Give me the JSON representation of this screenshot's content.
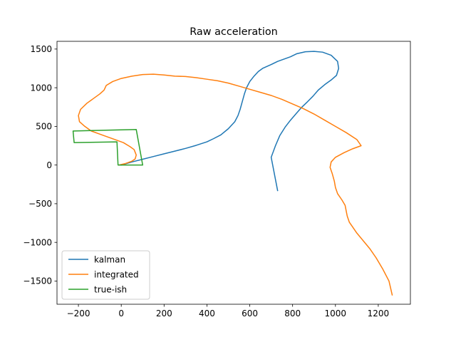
{
  "chart_data": {
    "type": "line",
    "title": "Raw acceleration",
    "xlabel": "",
    "ylabel": "",
    "xlim": [
      -300,
      1350
    ],
    "ylim": [
      -1800,
      1600
    ],
    "xticks": [
      -200,
      0,
      200,
      400,
      600,
      800,
      1000,
      1200
    ],
    "yticks": [
      -1500,
      -1000,
      -500,
      0,
      500,
      1000,
      1500
    ],
    "grid": false,
    "legend_position": "lower-left",
    "series": [
      {
        "name": "kalman",
        "color": "#1f77b4",
        "points": [
          [
            0,
            0
          ],
          [
            50,
            40
          ],
          [
            100,
            75
          ],
          [
            150,
            110
          ],
          [
            200,
            145
          ],
          [
            250,
            180
          ],
          [
            300,
            215
          ],
          [
            350,
            255
          ],
          [
            400,
            300
          ],
          [
            430,
            340
          ],
          [
            465,
            390
          ],
          [
            500,
            470
          ],
          [
            530,
            560
          ],
          [
            545,
            640
          ],
          [
            555,
            720
          ],
          [
            565,
            820
          ],
          [
            575,
            920
          ],
          [
            585,
            1000
          ],
          [
            600,
            1080
          ],
          [
            620,
            1150
          ],
          [
            640,
            1210
          ],
          [
            660,
            1250
          ],
          [
            700,
            1300
          ],
          [
            730,
            1340
          ],
          [
            760,
            1370
          ],
          [
            790,
            1400
          ],
          [
            820,
            1440
          ],
          [
            860,
            1465
          ],
          [
            900,
            1470
          ],
          [
            940,
            1460
          ],
          [
            980,
            1420
          ],
          [
            1010,
            1340
          ],
          [
            1015,
            1250
          ],
          [
            1005,
            1160
          ],
          [
            980,
            1100
          ],
          [
            950,
            1040
          ],
          [
            920,
            970
          ],
          [
            895,
            890
          ],
          [
            870,
            820
          ],
          [
            840,
            740
          ],
          [
            815,
            660
          ],
          [
            790,
            580
          ],
          [
            765,
            490
          ],
          [
            740,
            380
          ],
          [
            720,
            250
          ],
          [
            700,
            100
          ],
          [
            730,
            -330
          ]
        ]
      },
      {
        "name": "integrated",
        "color": "#ff7f0e",
        "points": [
          [
            -10,
            0
          ],
          [
            20,
            20
          ],
          [
            50,
            50
          ],
          [
            65,
            80
          ],
          [
            70,
            130
          ],
          [
            60,
            200
          ],
          [
            40,
            240
          ],
          [
            10,
            290
          ],
          [
            -30,
            330
          ],
          [
            -80,
            380
          ],
          [
            -140,
            440
          ],
          [
            -170,
            500
          ],
          [
            -195,
            560
          ],
          [
            -200,
            640
          ],
          [
            -190,
            720
          ],
          [
            -160,
            800
          ],
          [
            -130,
            860
          ],
          [
            -100,
            920
          ],
          [
            -80,
            970
          ],
          [
            -70,
            1030
          ],
          [
            -40,
            1080
          ],
          [
            0,
            1120
          ],
          [
            50,
            1150
          ],
          [
            100,
            1170
          ],
          [
            150,
            1175
          ],
          [
            200,
            1165
          ],
          [
            250,
            1150
          ],
          [
            300,
            1145
          ],
          [
            350,
            1130
          ],
          [
            400,
            1110
          ],
          [
            450,
            1090
          ],
          [
            500,
            1060
          ],
          [
            550,
            1020
          ],
          [
            600,
            980
          ],
          [
            650,
            940
          ],
          [
            700,
            900
          ],
          [
            750,
            850
          ],
          [
            800,
            790
          ],
          [
            850,
            730
          ],
          [
            900,
            660
          ],
          [
            950,
            580
          ],
          [
            1000,
            500
          ],
          [
            1050,
            420
          ],
          [
            1100,
            330
          ],
          [
            1120,
            250
          ],
          [
            1080,
            210
          ],
          [
            1040,
            160
          ],
          [
            1000,
            100
          ],
          [
            980,
            40
          ],
          [
            975,
            -30
          ],
          [
            985,
            -110
          ],
          [
            995,
            -210
          ],
          [
            1000,
            -290
          ],
          [
            1010,
            -370
          ],
          [
            1030,
            -450
          ],
          [
            1045,
            -520
          ],
          [
            1050,
            -590
          ],
          [
            1055,
            -660
          ],
          [
            1065,
            -740
          ],
          [
            1080,
            -800
          ],
          [
            1100,
            -880
          ],
          [
            1130,
            -980
          ],
          [
            1160,
            -1080
          ],
          [
            1190,
            -1200
          ],
          [
            1220,
            -1340
          ],
          [
            1250,
            -1500
          ],
          [
            1265,
            -1680
          ]
        ]
      },
      {
        "name": "true-ish",
        "color": "#2ca02c",
        "points": [
          [
            0,
            0
          ],
          [
            100,
            0
          ],
          [
            70,
            460
          ],
          [
            -225,
            440
          ],
          [
            -220,
            290
          ],
          [
            -20,
            300
          ],
          [
            -15,
            0
          ],
          [
            0,
            0
          ]
        ]
      }
    ]
  }
}
